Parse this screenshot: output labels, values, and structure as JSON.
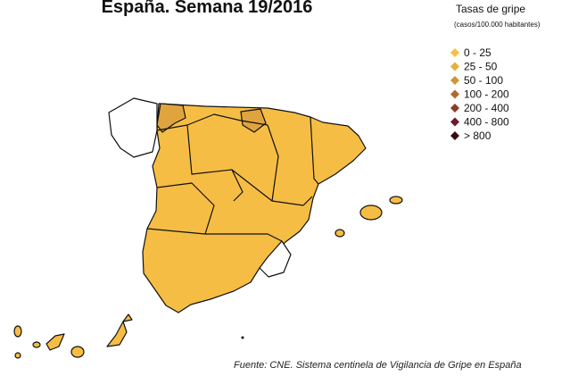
{
  "title": "España. Semana 19/2016",
  "legend": {
    "title": "Tasas de gripe",
    "subtitle": "(casos/100.000 habitantes)",
    "items": [
      {
        "label": "0 - 25",
        "color": "#f6c044"
      },
      {
        "label": "25 - 50",
        "color": "#e5ae3f"
      },
      {
        "label": "50 - 100",
        "color": "#cf953a"
      },
      {
        "label": "100 - 200",
        "color": "#ad6a33"
      },
      {
        "label": "200 - 400",
        "color": "#8a3b2b"
      },
      {
        "label": "400 - 800",
        "color": "#691c2c"
      },
      {
        "label": "> 800",
        "color": "#3c0a0c"
      }
    ]
  },
  "source": "Fuente: CNE. Sistema centinela de Vigilancia de Gripe en España"
}
